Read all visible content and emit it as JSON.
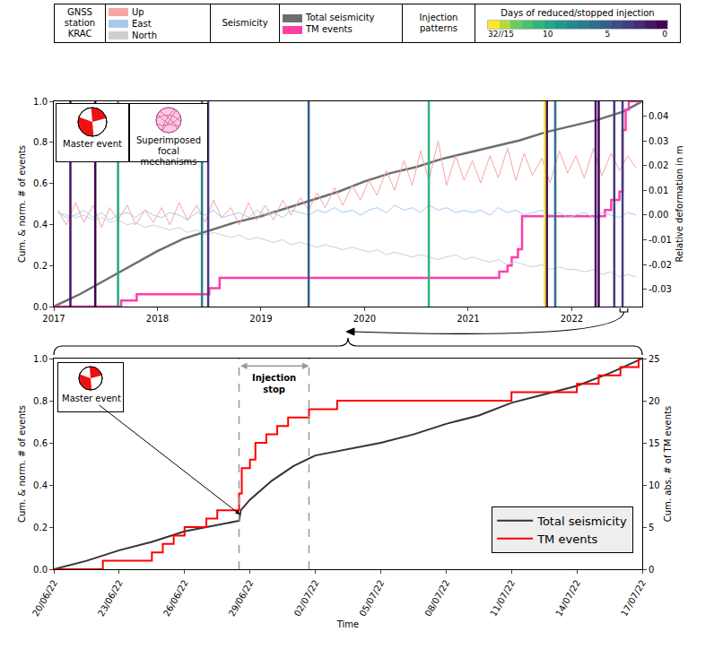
{
  "chart_data": [
    {
      "type": "line",
      "y_label": "Cum. & norm. # of events",
      "y2_label": "Relative deformation in m",
      "xlim": [
        2017,
        2022.68
      ],
      "xticks": [
        2017,
        2018,
        2019,
        2020,
        2021,
        2022
      ],
      "ylim": [
        0,
        1
      ],
      "yticks": [
        {
          "value": 0,
          "label": "0.0"
        },
        0.2,
        0.4,
        0.6,
        0.8,
        {
          "value": 1,
          "label": "1.0"
        }
      ],
      "y2lim": [
        -0.037,
        0.046
      ],
      "y2ticks": [
        0.04,
        0.03,
        0.02,
        0.01,
        {
          "value": 0,
          "label": "0.00"
        },
        -0.01,
        -0.02,
        -0.03
      ],
      "grid": false,
      "legend_groups": [
        {
          "title": "GNSS station KRAC",
          "series": [
            "Up",
            "East",
            "North"
          ]
        },
        {
          "title": "Seismicity",
          "series": [
            "Total seismicity",
            "TM events"
          ]
        }
      ],
      "insets": [
        "Master event",
        "Superimposed focal mechanisms"
      ],
      "injection": {
        "title": "Injection patterns",
        "label": "Days of reduced/stopped injection",
        "range": [
          15,
          0
        ],
        "ticks": [
          {
            "value": 15,
            "label": "32//15"
          },
          10,
          5,
          0
        ],
        "events": [
          {
            "x": 2017.16,
            "days": 1
          },
          {
            "x": 2017.4,
            "days": 0
          },
          {
            "x": 2017.62,
            "days": 10
          },
          {
            "x": 2018.43,
            "days": 7
          },
          {
            "x": 2018.49,
            "days": 3
          },
          {
            "x": 2019.46,
            "days": 5
          },
          {
            "x": 2020.62,
            "days": 11
          },
          {
            "x": 2021.74,
            "days": 32
          },
          {
            "x": 2021.76,
            "days": 1
          },
          {
            "x": 2021.84,
            "days": 6
          },
          {
            "x": 2022.23,
            "days": 1
          },
          {
            "x": 2022.26,
            "days": 0
          },
          {
            "x": 2022.41,
            "days": 3
          },
          {
            "x": 2022.49,
            "days": 3
          }
        ]
      },
      "series": [
        {
          "name": "Up",
          "color": "#f4a6a6",
          "axis": "y2",
          "x": [
            2017.04,
            2017.12,
            2017.21,
            2017.29,
            2017.38,
            2017.46,
            2017.54,
            2017.62,
            2017.71,
            2017.79,
            2017.88,
            2017.96,
            2018.04,
            2018.12,
            2018.21,
            2018.29,
            2018.38,
            2018.46,
            2018.54,
            2018.62,
            2018.71,
            2018.79,
            2018.88,
            2018.96,
            2019.04,
            2019.12,
            2019.21,
            2019.29,
            2019.38,
            2019.46,
            2019.54,
            2019.62,
            2019.71,
            2019.79,
            2019.88,
            2019.96,
            2020.04,
            2020.12,
            2020.21,
            2020.29,
            2020.38,
            2020.46,
            2020.54,
            2020.62,
            2020.71,
            2020.79,
            2020.88,
            2020.96,
            2021.04,
            2021.12,
            2021.21,
            2021.29,
            2021.38,
            2021.46,
            2021.54,
            2021.62,
            2021.71,
            2021.79,
            2021.88,
            2021.96,
            2022.04,
            2022.12,
            2022.21,
            2022.29,
            2022.38,
            2022.46,
            2022.54,
            2022.62
          ],
          "values": [
            0.002,
            -0.004,
            0.005,
            -0.003,
            0.004,
            -0.005,
            0.003,
            -0.002,
            0.004,
            -0.004,
            0.002,
            -0.003,
            0.003,
            -0.004,
            0.005,
            -0.002,
            0.004,
            -0.003,
            0.006,
            -0.001,
            0.003,
            -0.004,
            0.005,
            -0.002,
            0.004,
            -0.002,
            0.006,
            0.0,
            0.007,
            0.002,
            0.009,
            0.003,
            0.011,
            0.004,
            0.012,
            0.006,
            0.014,
            0.008,
            0.018,
            0.01,
            0.022,
            0.012,
            0.026,
            0.014,
            0.03,
            0.012,
            0.024,
            0.014,
            0.022,
            0.013,
            0.024,
            0.015,
            0.027,
            0.014,
            0.025,
            0.016,
            0.023,
            0.013,
            0.026,
            0.017,
            0.024,
            0.015,
            0.027,
            0.016,
            0.025,
            0.018,
            0.024,
            0.019
          ]
        },
        {
          "name": "East",
          "color": "#a9c9ef",
          "axis": "y2",
          "x": [
            2017.04,
            2017.12,
            2017.21,
            2017.29,
            2017.38,
            2017.46,
            2017.54,
            2017.62,
            2017.71,
            2017.79,
            2017.88,
            2017.96,
            2018.04,
            2018.12,
            2018.21,
            2018.29,
            2018.38,
            2018.46,
            2018.54,
            2018.62,
            2018.71,
            2018.79,
            2018.88,
            2018.96,
            2019.04,
            2019.12,
            2019.21,
            2019.29,
            2019.38,
            2019.46,
            2019.54,
            2019.62,
            2019.71,
            2019.79,
            2019.88,
            2019.96,
            2020.04,
            2020.12,
            2020.21,
            2020.29,
            2020.38,
            2020.46,
            2020.54,
            2020.62,
            2020.71,
            2020.79,
            2020.88,
            2020.96,
            2021.04,
            2021.12,
            2021.21,
            2021.29,
            2021.38,
            2021.46,
            2021.54,
            2021.62,
            2021.71,
            2021.79,
            2021.88,
            2021.96,
            2022.04,
            2022.12,
            2022.21,
            2022.29,
            2022.38,
            2022.46,
            2022.54,
            2022.62
          ],
          "values": [
            0.001,
            -0.001,
            0.0,
            0.002,
            -0.001,
            0.001,
            -0.002,
            0.0,
            0.001,
            -0.001,
            0.002,
            0.0,
            -0.001,
            0.001,
            0.0,
            -0.002,
            0.001,
            0.0,
            0.002,
            -0.001,
            0.0,
            0.001,
            -0.001,
            0.002,
            0.0,
            0.001,
            -0.001,
            0.002,
            0.001,
            0.0,
            0.002,
            0.001,
            0.003,
            0.001,
            0.002,
            0.0,
            0.002,
            0.003,
            0.001,
            0.004,
            0.002,
            0.003,
            0.001,
            0.004,
            0.002,
            0.003,
            0.001,
            0.002,
            0.001,
            0.002,
            0.0,
            0.003,
            0.001,
            0.002,
            0.0,
            0.001,
            0.002,
            0.0,
            0.001,
            -0.001,
            0.0,
            0.001,
            -0.001,
            0.001,
            0.0,
            -0.001,
            0.001,
            0.0
          ]
        },
        {
          "name": "North",
          "color": "#cfcfcf",
          "axis": "y2",
          "x": [
            2017.04,
            2017.12,
            2017.21,
            2017.29,
            2017.38,
            2017.46,
            2017.54,
            2017.62,
            2017.71,
            2017.79,
            2017.88,
            2017.96,
            2018.04,
            2018.12,
            2018.21,
            2018.29,
            2018.38,
            2018.46,
            2018.54,
            2018.62,
            2018.71,
            2018.79,
            2018.88,
            2018.96,
            2019.04,
            2019.12,
            2019.21,
            2019.29,
            2019.38,
            2019.46,
            2019.54,
            2019.62,
            2019.71,
            2019.79,
            2019.88,
            2019.96,
            2020.04,
            2020.12,
            2020.21,
            2020.29,
            2020.38,
            2020.46,
            2020.54,
            2020.62,
            2020.71,
            2020.79,
            2020.88,
            2020.96,
            2021.04,
            2021.12,
            2021.21,
            2021.29,
            2021.38,
            2021.46,
            2021.54,
            2021.62,
            2021.71,
            2021.79,
            2021.88,
            2021.96,
            2022.04,
            2022.12,
            2022.21,
            2022.29,
            2022.38,
            2022.46,
            2022.54,
            2022.62
          ],
          "values": [
            0.001,
            0.0,
            -0.001,
            0.0,
            -0.002,
            -0.001,
            -0.003,
            -0.002,
            -0.004,
            -0.003,
            -0.005,
            -0.004,
            -0.005,
            -0.006,
            -0.005,
            -0.007,
            -0.006,
            -0.008,
            -0.007,
            -0.008,
            -0.009,
            -0.008,
            -0.01,
            -0.009,
            -0.01,
            -0.011,
            -0.01,
            -0.012,
            -0.011,
            -0.012,
            -0.013,
            -0.012,
            -0.013,
            -0.014,
            -0.013,
            -0.014,
            -0.015,
            -0.014,
            -0.016,
            -0.015,
            -0.016,
            -0.017,
            -0.016,
            -0.017,
            -0.018,
            -0.017,
            -0.016,
            -0.018,
            -0.017,
            -0.018,
            -0.019,
            -0.018,
            -0.02,
            -0.019,
            -0.02,
            -0.021,
            -0.02,
            -0.022,
            -0.021,
            -0.022,
            -0.022,
            -0.023,
            -0.022,
            -0.024,
            -0.023,
            -0.025,
            -0.024,
            -0.025
          ]
        },
        {
          "name": "Total seismicity",
          "color": "#6e6e6e",
          "x": [
            2017.0,
            2017.25,
            2017.5,
            2017.75,
            2018.0,
            2018.25,
            2018.5,
            2018.75,
            2019.0,
            2019.25,
            2019.5,
            2019.75,
            2020.0,
            2020.25,
            2020.5,
            2020.75,
            2021.0,
            2021.25,
            2021.5,
            2021.75,
            2022.0,
            2022.25,
            2022.5,
            2022.68
          ],
          "values": [
            0,
            0.06,
            0.13,
            0.2,
            0.27,
            0.33,
            0.37,
            0.41,
            0.44,
            0.48,
            0.52,
            0.56,
            0.61,
            0.65,
            0.68,
            0.72,
            0.75,
            0.78,
            0.81,
            0.85,
            0.88,
            0.91,
            0.95,
            1.0
          ]
        },
        {
          "name": "TM events",
          "color": "#ff3fa8",
          "line_style": "step",
          "x": [
            2017.0,
            2017.65,
            2017.8,
            2018.5,
            2018.6,
            2021.3,
            2021.38,
            2021.42,
            2021.48,
            2021.52,
            2022.32,
            2022.38,
            2022.46,
            2022.49,
            2022.52,
            2022.55,
            2022.68
          ],
          "values": [
            0,
            0.03,
            0.06,
            0.09,
            0.14,
            0.17,
            0.2,
            0.24,
            0.28,
            0.44,
            0.47,
            0.52,
            0.56,
            0.86,
            0.96,
            1.0,
            1.0
          ]
        }
      ]
    },
    {
      "type": "line",
      "x_label": "Time",
      "y_label": "Cum. & norm. # of events",
      "y2_label": "Cum. abs. # of TM events",
      "xlim": [
        "2022-06-20",
        "2022-07-17"
      ],
      "xticks": [
        {
          "value": "2022-06-20",
          "label": "20/06/22"
        },
        {
          "value": "2022-06-23",
          "label": "23/06/22"
        },
        {
          "value": "2022-06-26",
          "label": "26/06/22"
        },
        {
          "value": "2022-06-29",
          "label": "29/06/22"
        },
        {
          "value": "2022-07-02",
          "label": "02/07/22"
        },
        {
          "value": "2022-07-05",
          "label": "05/07/22"
        },
        {
          "value": "2022-07-08",
          "label": "08/07/22"
        },
        {
          "value": "2022-07-11",
          "label": "11/07/22"
        },
        {
          "value": "2022-07-14",
          "label": "14/07/22"
        },
        {
          "value": "2022-07-17",
          "label": "17/07/22"
        }
      ],
      "ylim": [
        0,
        1
      ],
      "yticks": [
        {
          "value": 0,
          "label": "0.0"
        },
        0.2,
        0.4,
        0.6,
        0.8,
        {
          "value": 1,
          "label": "1.0"
        }
      ],
      "y2lim": [
        0,
        25
      ],
      "y2ticks": [
        0,
        5,
        10,
        15,
        20,
        25
      ],
      "grid": false,
      "legend": "bottom right",
      "injection_stop": {
        "label": "Injection stop",
        "start": "2022-06-28 12:00",
        "end": "2022-07-01 17:00"
      },
      "master_event": {
        "label": "Master event",
        "x": "2022-06-28 13:00",
        "y": 0.26
      },
      "series": [
        {
          "name": "Total seismicity",
          "color": "#333333",
          "x": [
            "2022-06-20 00:00",
            "2022-06-21 12:00",
            "2022-06-23 00:00",
            "2022-06-24 12:00",
            "2022-06-26 00:00",
            "2022-06-27 12:00",
            "2022-06-28 12:00",
            "2022-06-28 14:00",
            "2022-06-29 00:00",
            "2022-06-30 00:00",
            "2022-07-01 00:00",
            "2022-07-02 00:00",
            "2022-07-03 12:00",
            "2022-07-05 00:00",
            "2022-07-06 12:00",
            "2022-07-08 00:00",
            "2022-07-09 12:00",
            "2022-07-11 00:00",
            "2022-07-12 12:00",
            "2022-07-14 00:00",
            "2022-07-15 12:00",
            "2022-07-17 00:00"
          ],
          "values": [
            0,
            0.04,
            0.09,
            0.13,
            0.18,
            0.21,
            0.23,
            0.28,
            0.33,
            0.42,
            0.49,
            0.54,
            0.57,
            0.6,
            0.64,
            0.69,
            0.73,
            0.79,
            0.83,
            0.87,
            0.93,
            1.0
          ]
        },
        {
          "name": "TM events",
          "color": "#ff0000",
          "axis": "y2",
          "line_style": "step",
          "x": [
            "2022-06-20 00:00",
            "2022-06-22 06:00",
            "2022-06-24 12:00",
            "2022-06-25 00:00",
            "2022-06-25 12:00",
            "2022-06-26 00:00",
            "2022-06-27 00:00",
            "2022-06-27 12:00",
            "2022-06-28 12:00",
            "2022-06-28 15:00",
            "2022-06-29 00:00",
            "2022-06-29 06:00",
            "2022-06-29 18:00",
            "2022-06-30 06:00",
            "2022-06-30 18:00",
            "2022-07-01 17:00",
            "2022-07-03 00:00",
            "2022-07-11 00:00",
            "2022-07-14 00:00",
            "2022-07-15 00:00",
            "2022-07-16 00:00",
            "2022-07-16 20:00",
            "2022-07-17 00:00"
          ],
          "values": [
            0,
            1,
            2,
            3,
            4,
            5,
            6,
            7,
            9,
            12,
            13,
            15,
            16,
            17,
            18,
            19,
            20,
            21,
            22,
            23,
            24,
            25,
            25
          ]
        }
      ]
    }
  ]
}
